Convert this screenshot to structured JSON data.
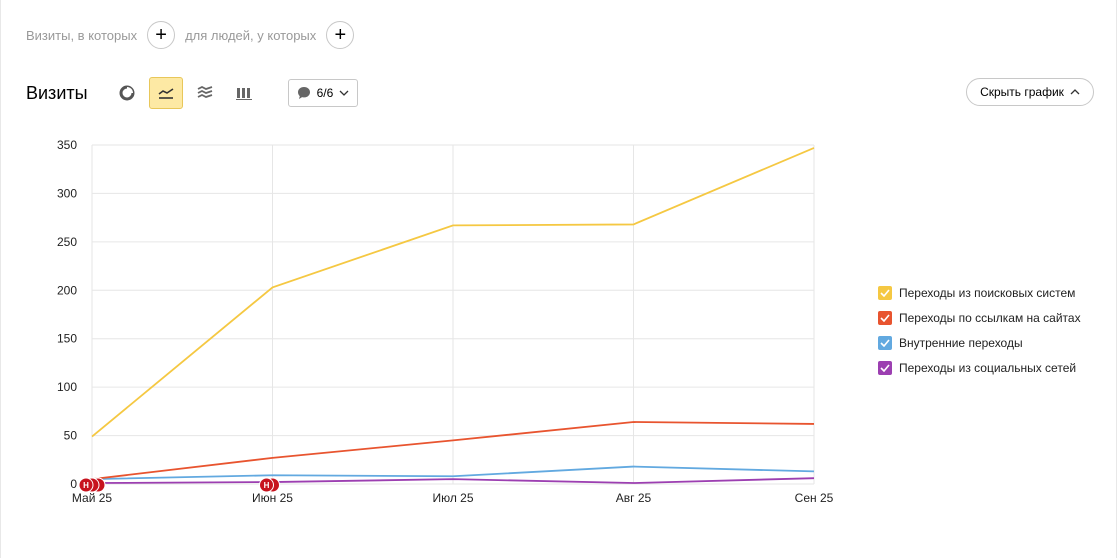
{
  "segment": {
    "visits_label": "Визиты, в которых",
    "people_label": "для людей, у которых",
    "plus": "+"
  },
  "toolbar": {
    "title": "Визиты",
    "chart_types": [
      {
        "icon": "pie-chart-icon",
        "active": false
      },
      {
        "icon": "line-chart-icon",
        "active": true
      },
      {
        "icon": "area-chart-icon",
        "active": false
      },
      {
        "icon": "bar-chart-icon",
        "active": false
      }
    ],
    "notes_count": "6/6",
    "hide_chart_label": "Скрыть график"
  },
  "chart_data": {
    "type": "line",
    "x": [
      "Май 25",
      "Июн 25",
      "Июл 25",
      "Авг 25",
      "Сен 25"
    ],
    "ylim": [
      0,
      350
    ],
    "yticks": [
      0,
      50,
      100,
      150,
      200,
      250,
      300,
      350
    ],
    "grid": true,
    "legend_position": "right",
    "series": [
      {
        "name": "Переходы из поисковых систем",
        "color": "#f5c842",
        "values": [
          49,
          203,
          267,
          268,
          347
        ]
      },
      {
        "name": "Переходы по ссылкам на сайтах",
        "color": "#e8542f",
        "values": [
          5,
          27,
          45,
          64,
          62
        ]
      },
      {
        "name": "Внутренние переходы",
        "color": "#62a9e0",
        "values": [
          5,
          9,
          8,
          18,
          13
        ]
      },
      {
        "name": "Переходы из социальных сетей",
        "color": "#9c3fb1",
        "values": [
          1,
          2,
          5,
          1,
          6
        ]
      }
    ],
    "annotations": [
      {
        "x": "Май 25",
        "label": "H",
        "count": 3
      },
      {
        "x": "Июн 25",
        "label": "H",
        "count": 2
      }
    ]
  }
}
